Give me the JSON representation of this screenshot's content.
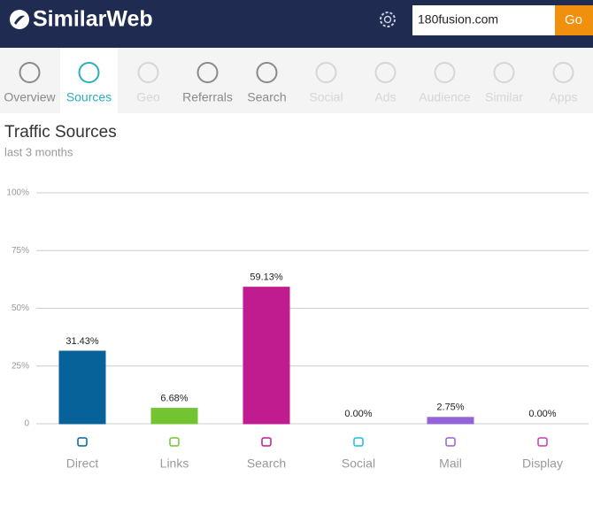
{
  "header": {
    "logo": "SimilarWeb",
    "search_value": "180fusion.com",
    "button": "Go"
  },
  "nav": {
    "active_tab": 1,
    "tabs": [
      {
        "label": "Overview",
        "enabled": true
      },
      {
        "label": "Sources",
        "enabled": true
      },
      {
        "label": "Geo",
        "enabled": false
      },
      {
        "label": "Referrals",
        "enabled": true
      },
      {
        "label": "Search",
        "enabled": true
      },
      {
        "label": "Social",
        "enabled": false
      },
      {
        "label": "Ads",
        "enabled": false
      },
      {
        "label": "Audience",
        "enabled": false
      },
      {
        "label": "Similar",
        "enabled": false
      },
      {
        "label": "Apps",
        "enabled": false
      }
    ]
  },
  "chart_data": {
    "type": "bar",
    "title": "Traffic Sources",
    "subtitle": "last 3 months",
    "categories": [
      "Direct",
      "Links",
      "Search",
      "Social",
      "Mail",
      "Display"
    ],
    "values": [
      31.43,
      6.68,
      59.13,
      0,
      2.75,
      0
    ],
    "value_labels": [
      "31.43%",
      "6.68%",
      "59.13%",
      "0.00%",
      "2.75%",
      "0.00%"
    ],
    "colors": [
      "#07629a",
      "#72c531",
      "#c01b8f",
      "#1ebbe2",
      "#9363d8",
      "#bf41b0"
    ],
    "ylim": [
      0,
      100
    ],
    "yticks": [
      0,
      {
        "value": 25,
        "label": "25%"
      },
      {
        "value": 50,
        "label": "50%"
      },
      {
        "value": 75,
        "label": "75%"
      },
      {
        "value": 100,
        "label": "100%"
      }
    ],
    "grid": true
  }
}
